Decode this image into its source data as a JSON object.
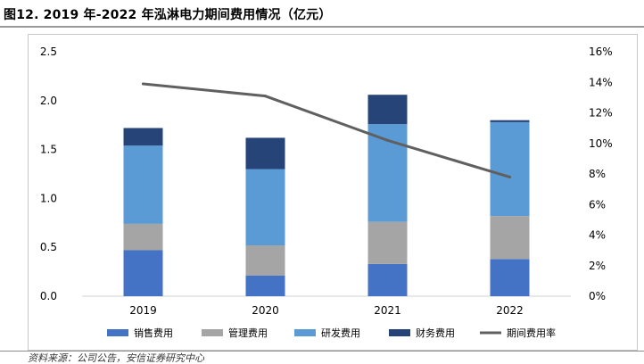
{
  "title": "图12. 2019 年-2022 年泓淋电力期间费用情况（亿元）",
  "source": "资料来源：公司公告，安信证券研究中心",
  "chart_data": {
    "type": "bar",
    "stacked": true,
    "title": "图12. 2019 年-2022 年泓淋电力期间费用情况（亿元）",
    "categories": [
      "2019",
      "2020",
      "2021",
      "2022"
    ],
    "series": [
      {
        "name": "销售费用",
        "type": "bar",
        "axis": "left",
        "color": "#4472C4",
        "values": [
          0.47,
          0.21,
          0.33,
          0.38
        ]
      },
      {
        "name": "管理费用",
        "type": "bar",
        "axis": "left",
        "color": "#A5A5A5",
        "values": [
          0.27,
          0.31,
          0.43,
          0.44
        ]
      },
      {
        "name": "研发费用",
        "type": "bar",
        "axis": "left",
        "color": "#5B9BD5",
        "values": [
          0.8,
          0.78,
          1.0,
          0.96
        ]
      },
      {
        "name": "财务费用",
        "type": "bar",
        "axis": "left",
        "color": "#264478",
        "values": [
          0.18,
          0.32,
          0.3,
          0.02
        ]
      },
      {
        "name": "期间费用率",
        "type": "line",
        "axis": "right",
        "color": "#606060",
        "values": [
          13.9,
          13.1,
          10.2,
          7.8
        ]
      }
    ],
    "ylim": [
      0,
      2.5
    ],
    "yticks": [
      "0.0",
      "0.5",
      "1.0",
      "1.5",
      "2.0",
      "2.5"
    ],
    "y2lim": [
      0,
      16
    ],
    "y2ticks": [
      "0%",
      "2%",
      "4%",
      "6%",
      "8%",
      "10%",
      "12%",
      "14%",
      "16%"
    ],
    "xlabel": "",
    "ylabel": "",
    "y2label": "",
    "grid": false,
    "legend": "bottom"
  }
}
